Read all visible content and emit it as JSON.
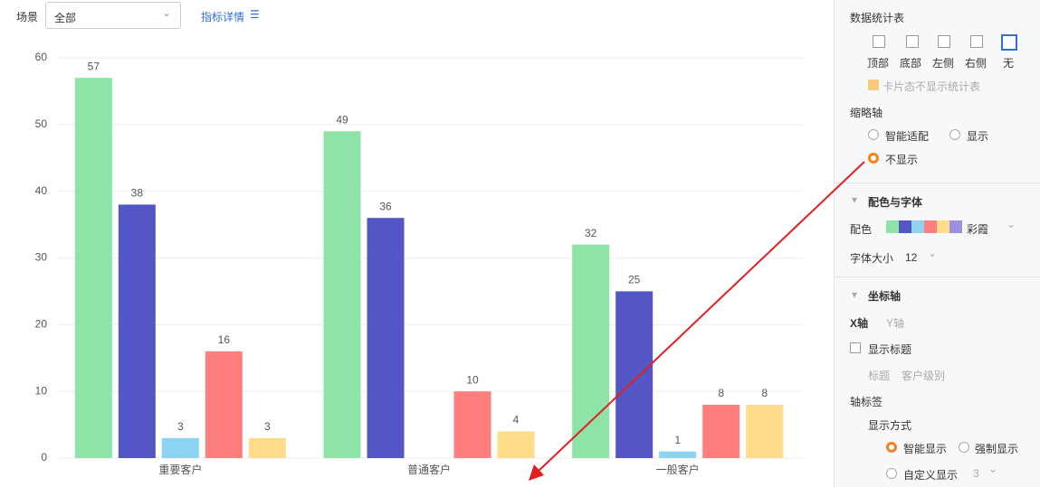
{
  "toolbar": {
    "scene_label": "场景",
    "scene_value": "全部",
    "metric_detail": "指标详情"
  },
  "chart_data": {
    "type": "bar",
    "categories": [
      "重要客户",
      "普通客户",
      "一般客户"
    ],
    "series": [
      {
        "color": "#8ee4a6",
        "values": [
          57,
          49,
          32
        ]
      },
      {
        "color": "#5356c4",
        "values": [
          38,
          36,
          25
        ]
      },
      {
        "color": "#8dd4f0",
        "values": [
          3,
          null,
          1
        ]
      },
      {
        "color": "#ff7f7f",
        "values": [
          16,
          10,
          8
        ]
      },
      {
        "color": "#ffdc8a",
        "values": [
          3,
          4,
          8
        ]
      }
    ],
    "ylim": [
      0,
      60
    ],
    "yticks": [
      0,
      10,
      20,
      30,
      40,
      50,
      60
    ],
    "grid": true
  },
  "panel": {
    "stats_table": "数据统计表",
    "positions": [
      "顶部",
      "底部",
      "左侧",
      "右侧",
      "无"
    ],
    "card_hide": "卡片态不显示统计表",
    "thumb_axis": "缩略轴",
    "thumb_options": [
      "智能适配",
      "显示",
      "不显示"
    ],
    "color_font": "配色与字体",
    "palette_label": "配色",
    "palette_name": "彩霞",
    "font_size_label": "字体大小",
    "font_size": "12",
    "axis": "坐标轴",
    "x_axis": "X轴",
    "y_axis": "Y轴",
    "show_title": "显示标题",
    "title_label": "标题",
    "title_value": "客户级别",
    "axis_label": "轴标签",
    "display_mode": "显示方式",
    "display_options": [
      "智能显示",
      "强制显示",
      "自定义显示"
    ],
    "custom_value": "3"
  }
}
